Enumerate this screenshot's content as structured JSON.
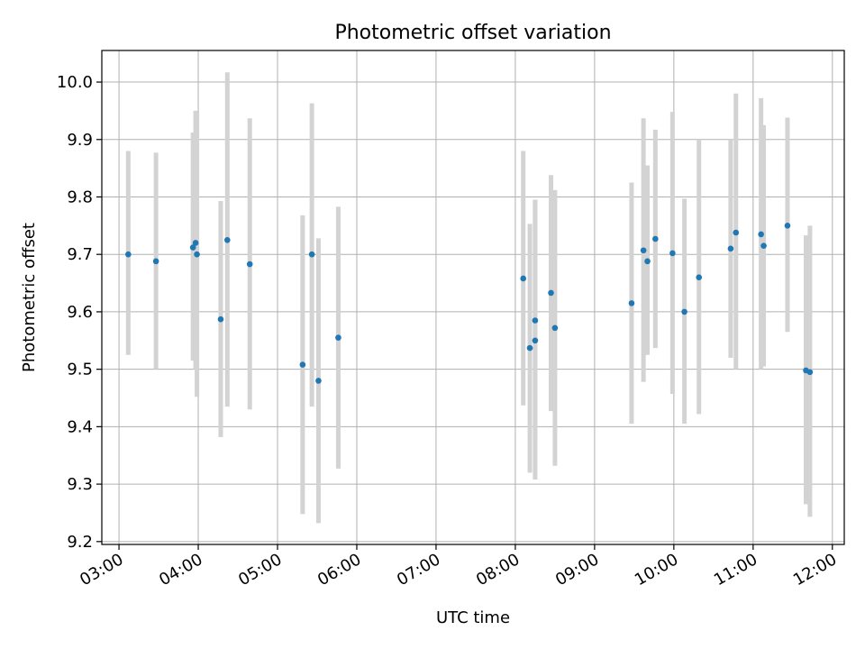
{
  "chart_data": {
    "type": "scatter",
    "title": "Photometric offset variation",
    "xlabel": "UTC time",
    "ylabel": "Photometric offset",
    "grid": true,
    "xlim": [
      "02:47",
      "12:09"
    ],
    "ylim": [
      9.195,
      10.055
    ],
    "x_ticks": [
      "03:00",
      "04:00",
      "05:00",
      "06:00",
      "07:00",
      "08:00",
      "09:00",
      "10:00",
      "11:00",
      "12:00"
    ],
    "y_ticks": [
      "9.2",
      "9.3",
      "9.4",
      "9.5",
      "9.6",
      "9.7",
      "9.8",
      "9.9",
      "10.0"
    ],
    "colors": {
      "points": "#1f77b4",
      "errorbars": "#d3d3d3",
      "grid": "#b0b0b0"
    },
    "points": [
      {
        "x": "03:07",
        "y": 9.7,
        "ylow": 9.525,
        "yhigh": 9.88
      },
      {
        "x": "03:28",
        "y": 9.688,
        "ylow": 9.5,
        "yhigh": 9.877
      },
      {
        "x": "03:56",
        "y": 9.712,
        "ylow": 9.515,
        "yhigh": 9.912
      },
      {
        "x": "03:58",
        "y": 9.72,
        "ylow": 9.5,
        "yhigh": 9.95
      },
      {
        "x": "03:59",
        "y": 9.7,
        "ylow": 9.452,
        "yhigh": 9.948
      },
      {
        "x": "04:17",
        "y": 9.587,
        "ylow": 9.382,
        "yhigh": 9.793
      },
      {
        "x": "04:22",
        "y": 9.725,
        "ylow": 9.435,
        "yhigh": 10.017
      },
      {
        "x": "04:39",
        "y": 9.683,
        "ylow": 9.43,
        "yhigh": 9.937
      },
      {
        "x": "05:19",
        "y": 9.508,
        "ylow": 9.248,
        "yhigh": 9.768
      },
      {
        "x": "05:26",
        "y": 9.7,
        "ylow": 9.435,
        "yhigh": 9.963
      },
      {
        "x": "05:31",
        "y": 9.48,
        "ylow": 9.232,
        "yhigh": 9.728
      },
      {
        "x": "05:46",
        "y": 9.555,
        "ylow": 9.327,
        "yhigh": 9.783
      },
      {
        "x": "08:06",
        "y": 9.658,
        "ylow": 9.437,
        "yhigh": 9.88
      },
      {
        "x": "08:11",
        "y": 9.537,
        "ylow": 9.32,
        "yhigh": 9.753
      },
      {
        "x": "08:15",
        "y": 9.55,
        "ylow": 9.308,
        "yhigh": 9.795
      },
      {
        "x": "08:15",
        "y": 9.585,
        "ylow": 9.375,
        "yhigh": 9.795
      },
      {
        "x": "08:27",
        "y": 9.633,
        "ylow": 9.427,
        "yhigh": 9.838
      },
      {
        "x": "08:30",
        "y": 9.572,
        "ylow": 9.332,
        "yhigh": 9.812
      },
      {
        "x": "09:28",
        "y": 9.615,
        "ylow": 9.405,
        "yhigh": 9.825
      },
      {
        "x": "09:37",
        "y": 9.707,
        "ylow": 9.478,
        "yhigh": 9.937
      },
      {
        "x": "09:40",
        "y": 9.688,
        "ylow": 9.525,
        "yhigh": 9.855
      },
      {
        "x": "09:46",
        "y": 9.727,
        "ylow": 9.537,
        "yhigh": 9.917
      },
      {
        "x": "09:59",
        "y": 9.702,
        "ylow": 9.457,
        "yhigh": 9.948
      },
      {
        "x": "10:08",
        "y": 9.6,
        "ylow": 9.405,
        "yhigh": 9.797
      },
      {
        "x": "10:19",
        "y": 9.66,
        "ylow": 9.422,
        "yhigh": 9.9
      },
      {
        "x": "10:43",
        "y": 9.71,
        "ylow": 9.52,
        "yhigh": 9.9
      },
      {
        "x": "10:47",
        "y": 9.738,
        "ylow": 9.5,
        "yhigh": 9.98
      },
      {
        "x": "11:06",
        "y": 9.735,
        "ylow": 9.5,
        "yhigh": 9.972
      },
      {
        "x": "11:08",
        "y": 9.715,
        "ylow": 9.505,
        "yhigh": 9.925
      },
      {
        "x": "11:26",
        "y": 9.75,
        "ylow": 9.565,
        "yhigh": 9.938
      },
      {
        "x": "11:40",
        "y": 9.498,
        "ylow": 9.265,
        "yhigh": 9.733
      },
      {
        "x": "11:43",
        "y": 9.495,
        "ylow": 9.243,
        "yhigh": 9.75
      }
    ]
  }
}
